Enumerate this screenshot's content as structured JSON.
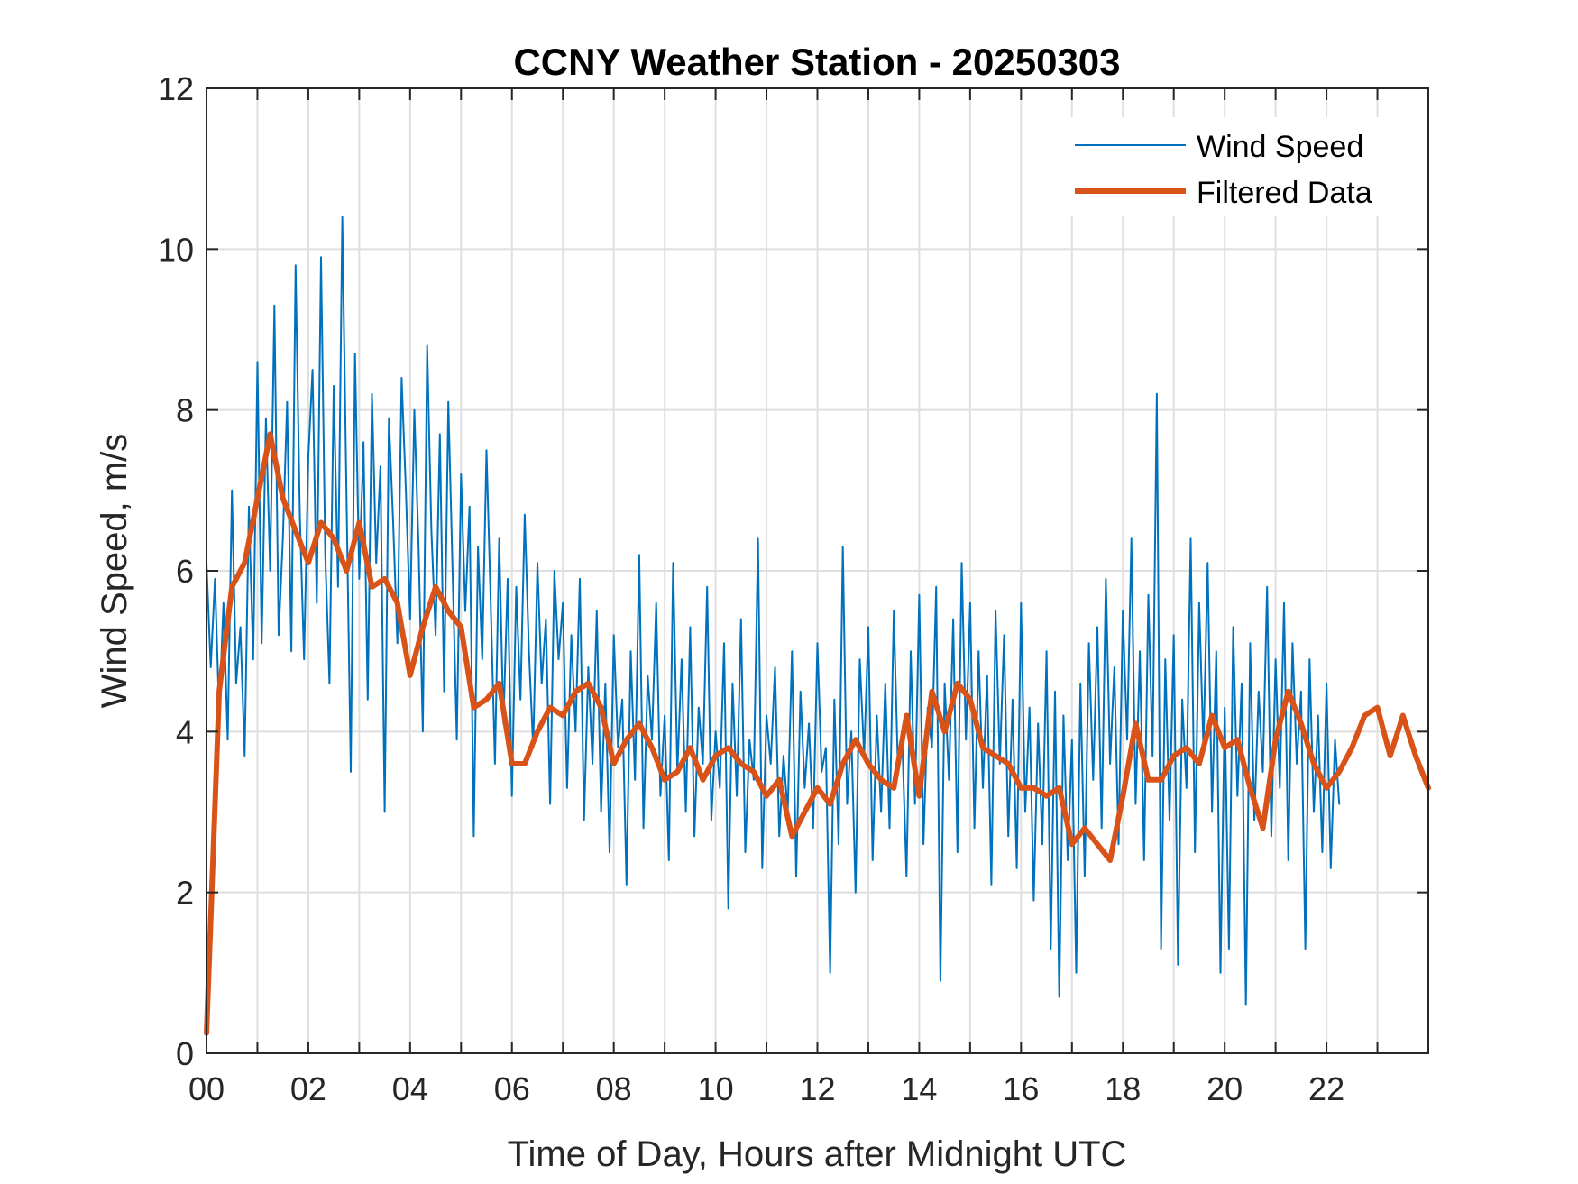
{
  "chart_data": {
    "type": "line",
    "title": "CCNY Weather Station - 20250303",
    "xlabel": "Time of Day, Hours after Midnight UTC",
    "ylabel": "Wind Speed, m/s",
    "xlim": [
      0,
      24
    ],
    "ylim": [
      0,
      12
    ],
    "grid": true,
    "legend_position": "top-right",
    "x_ticks": [
      0,
      2,
      4,
      6,
      8,
      10,
      12,
      14,
      16,
      18,
      20,
      22
    ],
    "x_tick_labels": [
      "00",
      "02",
      "04",
      "06",
      "08",
      "10",
      "12",
      "14",
      "16",
      "18",
      "20",
      "22"
    ],
    "x_minor_gridlines": [
      1,
      3,
      5,
      7,
      9,
      11,
      13,
      15,
      17,
      19,
      21,
      23
    ],
    "y_ticks": [
      0,
      2,
      4,
      6,
      8,
      10,
      12
    ],
    "y_tick_labels": [
      "0",
      "2",
      "4",
      "6",
      "8",
      "10",
      "12"
    ],
    "series": [
      {
        "name": "Wind Speed",
        "color": "#0072BD",
        "x_step_hours": 0.0833333,
        "x_start": 0,
        "values": [
          6.1,
          4.8,
          5.9,
          4.2,
          5.6,
          3.9,
          7.0,
          4.6,
          5.3,
          3.7,
          6.8,
          4.9,
          8.6,
          5.1,
          7.9,
          6.0,
          9.3,
          5.2,
          6.4,
          8.1,
          5.0,
          9.8,
          6.7,
          4.9,
          7.4,
          8.5,
          5.6,
          9.9,
          6.2,
          4.6,
          8.3,
          5.8,
          10.4,
          6.9,
          3.5,
          8.7,
          5.9,
          7.6,
          4.4,
          8.2,
          6.1,
          7.3,
          3.0,
          7.9,
          6.6,
          5.1,
          8.4,
          7.0,
          5.4,
          8.0,
          6.3,
          4.0,
          8.8,
          6.5,
          5.2,
          7.7,
          4.5,
          8.1,
          6.0,
          3.9,
          7.2,
          5.5,
          6.8,
          2.7,
          6.3,
          4.9,
          7.5,
          5.6,
          3.6,
          6.4,
          4.1,
          5.9,
          3.2,
          5.8,
          4.4,
          6.7,
          5.0,
          3.8,
          6.1,
          4.6,
          5.4,
          3.1,
          6.0,
          4.9,
          5.6,
          3.3,
          5.2,
          4.0,
          5.9,
          2.9,
          4.8,
          3.6,
          5.5,
          3.0,
          4.6,
          2.5,
          5.2,
          3.8,
          4.4,
          2.1,
          5.0,
          3.4,
          6.2,
          2.8,
          4.7,
          3.9,
          5.6,
          3.2,
          4.2,
          2.4,
          6.1,
          3.5,
          4.9,
          3.0,
          5.3,
          2.7,
          4.3,
          3.6,
          5.8,
          2.9,
          4.0,
          3.3,
          5.1,
          1.8,
          4.6,
          3.2,
          5.4,
          2.5,
          3.9,
          3.4,
          6.4,
          2.3,
          4.2,
          3.6,
          4.8,
          2.7,
          3.7,
          3.0,
          5.0,
          2.2,
          4.5,
          3.3,
          4.1,
          2.8,
          5.1,
          3.5,
          3.8,
          1.0,
          4.4,
          2.6,
          6.3,
          3.1,
          4.0,
          2.0,
          4.9,
          3.7,
          5.3,
          2.4,
          4.2,
          3.0,
          4.6,
          2.8,
          5.5,
          3.5,
          3.9,
          2.2,
          5.0,
          3.1,
          5.7,
          2.6,
          4.3,
          3.8,
          5.8,
          0.9,
          4.6,
          3.4,
          5.4,
          2.5,
          6.1,
          3.9,
          5.6,
          2.8,
          5.0,
          3.3,
          4.7,
          2.1,
          5.5,
          3.6,
          5.2,
          2.7,
          4.4,
          2.3,
          5.6,
          3.0,
          4.3,
          1.9,
          4.1,
          2.6,
          5.0,
          1.3,
          4.5,
          0.7,
          4.2,
          2.4,
          3.9,
          1.0,
          4.6,
          2.2,
          5.1,
          3.4,
          5.3,
          2.8,
          5.9,
          3.6,
          4.8,
          2.6,
          5.5,
          3.9,
          6.4,
          3.1,
          5.0,
          2.4,
          5.7,
          3.7,
          8.2,
          1.3,
          4.9,
          2.9,
          5.2,
          1.1,
          4.4,
          3.3,
          6.4,
          2.5,
          5.6,
          3.8,
          6.1,
          3.0,
          5.0,
          1.0,
          4.3,
          1.3,
          5.3,
          3.2,
          4.6,
          0.6,
          5.1,
          2.9,
          4.5,
          3.5,
          5.8,
          2.7,
          4.9,
          3.3,
          5.6,
          2.4,
          5.1,
          3.6,
          4.5,
          1.3,
          4.9,
          3.0,
          4.2,
          2.5,
          4.6,
          2.3,
          3.9,
          3.1
        ]
      },
      {
        "name": "Filtered Data",
        "color": "#D95319",
        "x_step_hours": 0.25,
        "x_start": 0,
        "values": [
          0.25,
          4.5,
          5.8,
          6.1,
          6.9,
          7.7,
          6.9,
          6.5,
          6.1,
          6.6,
          6.4,
          6.0,
          6.6,
          5.8,
          5.9,
          5.6,
          4.7,
          5.3,
          5.8,
          5.5,
          5.3,
          4.3,
          4.4,
          4.6,
          3.6,
          3.6,
          4.0,
          4.3,
          4.2,
          4.5,
          4.6,
          4.3,
          3.6,
          3.9,
          4.1,
          3.8,
          3.4,
          3.5,
          3.8,
          3.4,
          3.7,
          3.8,
          3.6,
          3.5,
          3.2,
          3.4,
          2.7,
          3.0,
          3.3,
          3.1,
          3.6,
          3.9,
          3.6,
          3.4,
          3.3,
          4.2,
          3.2,
          4.5,
          4.0,
          4.6,
          4.4,
          3.8,
          3.7,
          3.6,
          3.3,
          3.3,
          3.2,
          3.3,
          2.6,
          2.8,
          2.6,
          2.4,
          3.2,
          4.1,
          3.4,
          3.4,
          3.7,
          3.8,
          3.6,
          4.2,
          3.8,
          3.9,
          3.3,
          2.8,
          3.9,
          4.5,
          4.1,
          3.6,
          3.3,
          3.5,
          3.8,
          4.2,
          4.3,
          3.7,
          4.2,
          3.7,
          3.3
        ]
      }
    ]
  }
}
